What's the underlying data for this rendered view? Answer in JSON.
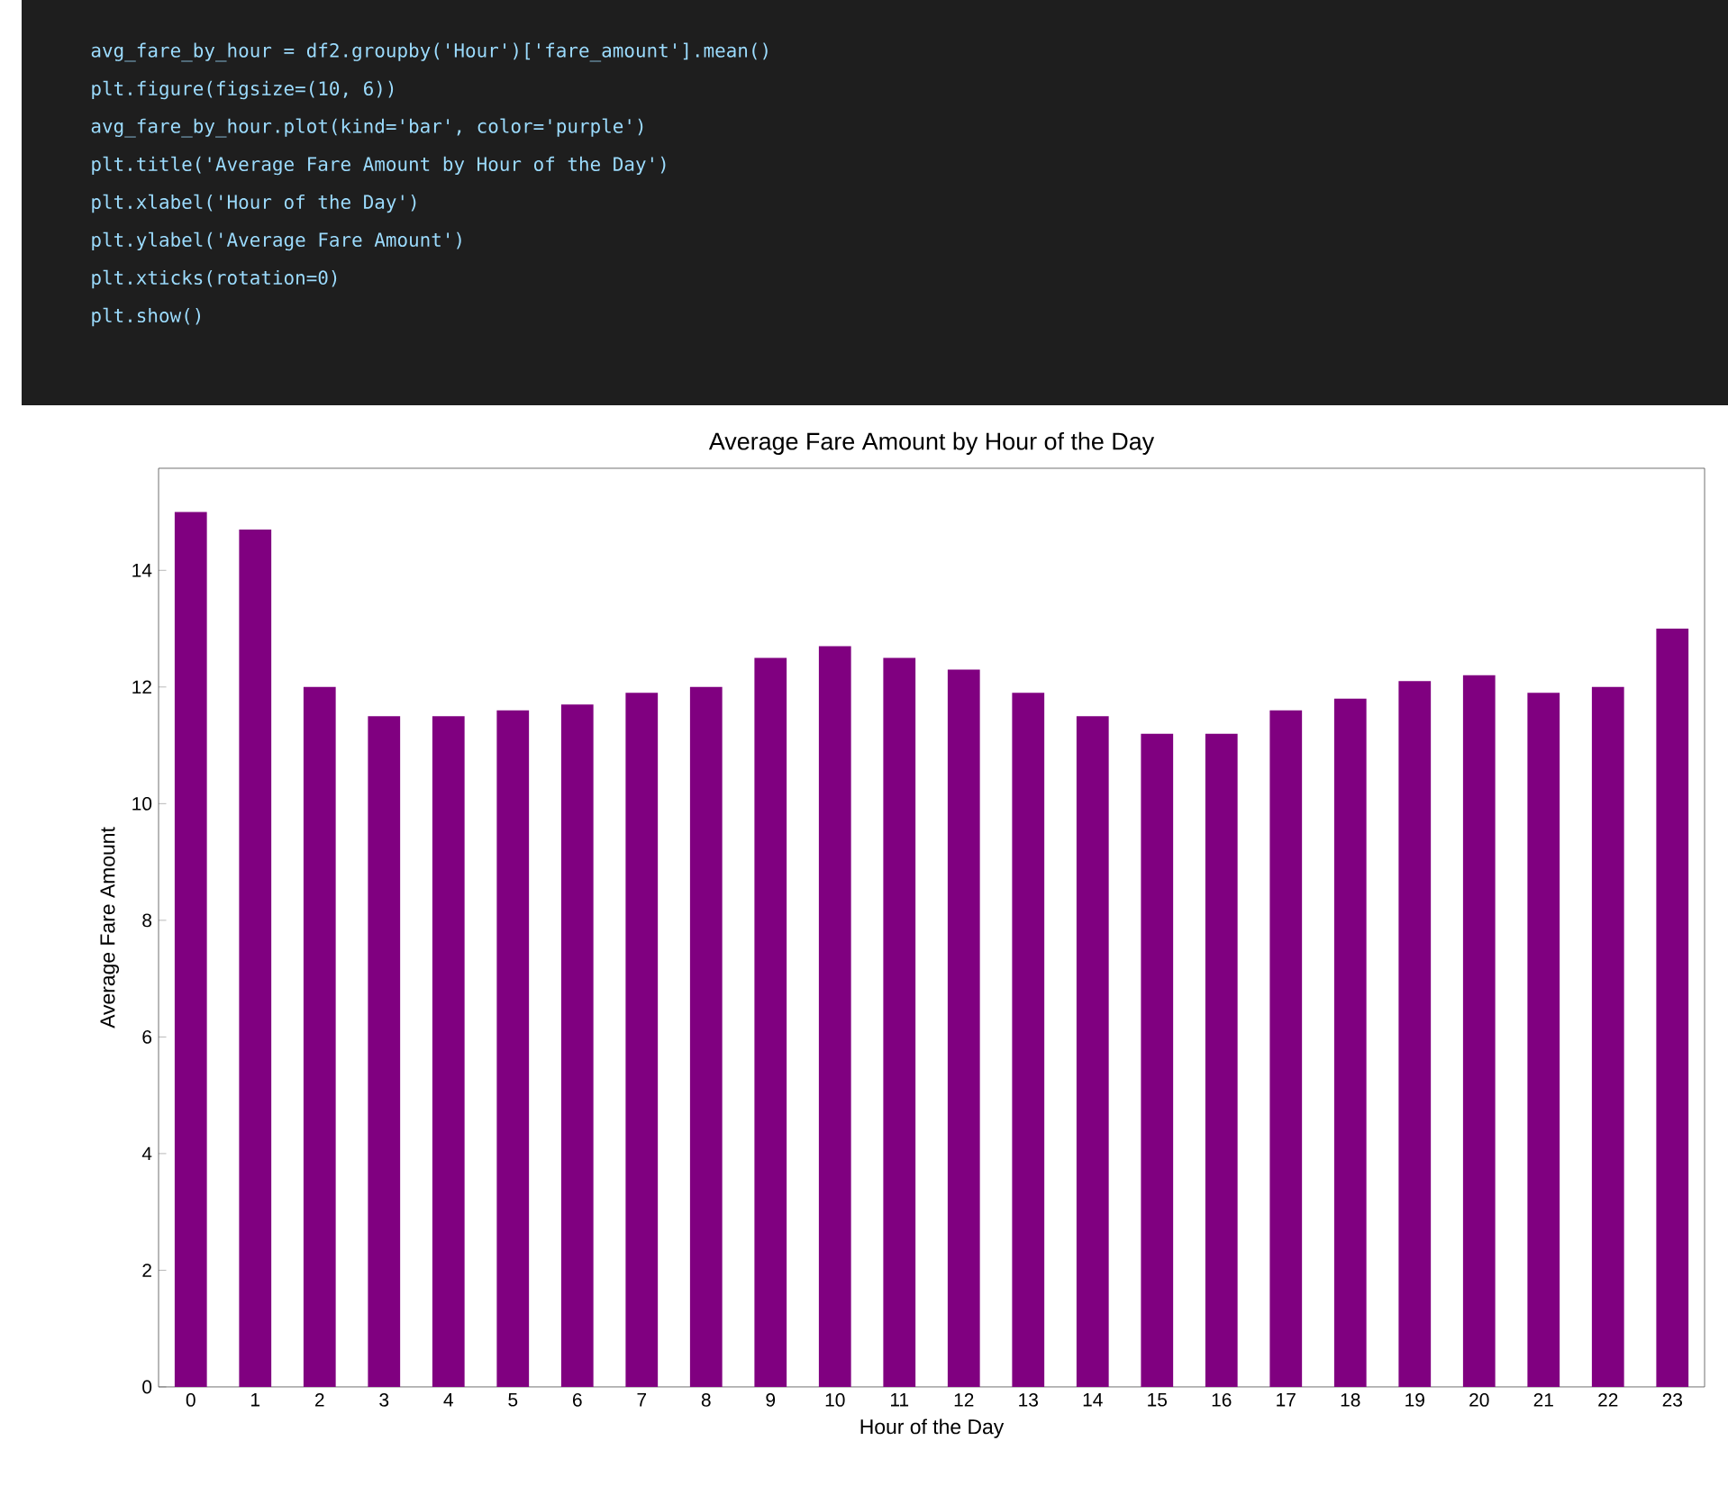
{
  "chart_data": {
    "type": "bar",
    "title": "Average Fare Amount by Hour of the Day",
    "xlabel": "Hour of the Day",
    "ylabel": "Average Fare Amount",
    "categories": [
      "0",
      "1",
      "2",
      "3",
      "4",
      "5",
      "6",
      "7",
      "8",
      "9",
      "10",
      "11",
      "12",
      "13",
      "14",
      "15",
      "16",
      "17",
      "18",
      "19",
      "20",
      "21",
      "22",
      "23"
    ],
    "values": [
      15.0,
      14.7,
      12.0,
      11.5,
      11.5,
      11.6,
      11.7,
      11.9,
      12.0,
      12.5,
      12.7,
      12.5,
      12.3,
      11.9,
      11.5,
      11.2,
      11.2,
      11.6,
      11.8,
      12.1,
      12.2,
      11.9,
      12.0,
      13.0
    ],
    "color": "#800080",
    "ylim": [
      0,
      15.75
    ],
    "yticks": [
      0,
      2,
      4,
      6,
      8,
      10,
      12,
      14
    ],
    "annotations": [
      "avg_fare_by_hour = df2.groupby('Hour')['fare_amount'].mean()",
      "plt.figure(figsize=(10, 6))",
      "avg_fare_by_hour.plot(kind='bar', color='purple')",
      "plt.title('Average Fare Amount by Hour of the Day')",
      "plt.xlabel('Hour of the Day')",
      "plt.ylabel('Average Fare Amount')",
      "plt.xticks(rotation=0)",
      "plt.show()"
    ]
  }
}
